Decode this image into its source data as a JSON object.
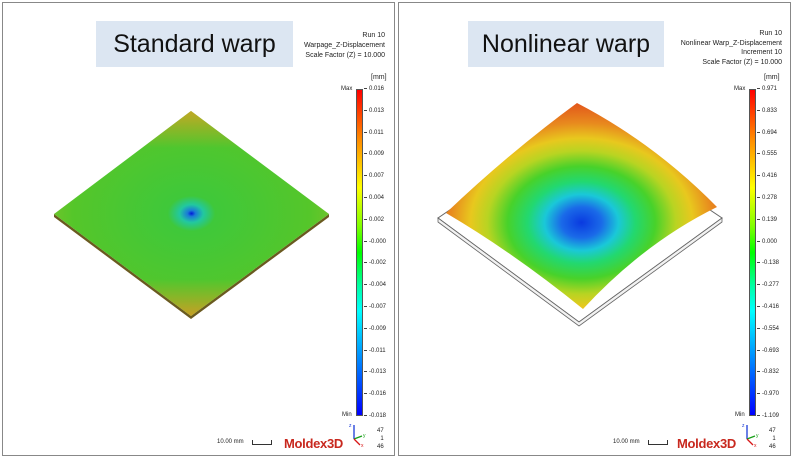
{
  "left": {
    "title": "Standard warp",
    "info": [
      "Run 10",
      "Warpage_Z-Displacement",
      "Scale Factor (Z) = 10.000"
    ],
    "unit": "[mm]",
    "max_label": "Max",
    "min_label": "Min",
    "ticks": [
      "0.016",
      "0.013",
      "0.011",
      "0.009",
      "0.007",
      "0.004",
      "0.002",
      "-0.000",
      "-0.002",
      "-0.004",
      "-0.007",
      "-0.009",
      "-0.011",
      "-0.013",
      "-0.016",
      "-0.018"
    ],
    "scale_text": "10.00 mm",
    "logo": "Moldex3D",
    "axis_numbers": [
      "47",
      "1",
      "46"
    ]
  },
  "right": {
    "title": "Nonlinear warp",
    "info": [
      "Run 10",
      "Nonlinear Warp_Z-Displacement",
      "Increment 10",
      "Scale Factor (Z) = 10.000"
    ],
    "unit": "[mm]",
    "max_label": "Max",
    "min_label": "Min",
    "ticks": [
      "0.971",
      "0.833",
      "0.694",
      "0.555",
      "0.416",
      "0.278",
      "0.139",
      "0.000",
      "-0.138",
      "-0.277",
      "-0.416",
      "-0.554",
      "-0.693",
      "-0.832",
      "-0.970",
      "-1.109"
    ],
    "scale_text": "10.00 mm",
    "logo": "Moldex3D",
    "axis_numbers": [
      "47",
      "1",
      "46"
    ]
  },
  "icons": {
    "axis": "xyz-axis-triad-icon"
  }
}
